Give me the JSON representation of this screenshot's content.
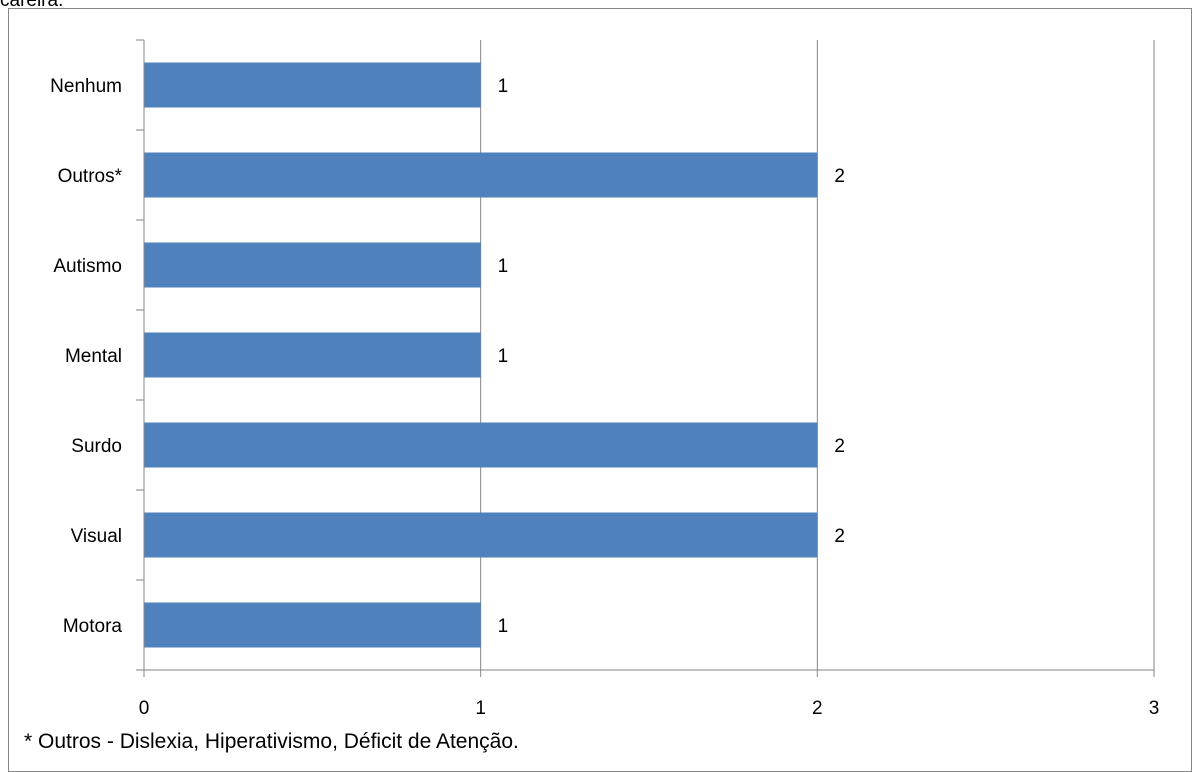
{
  "header_fragment": "carelra.",
  "footnote": "* Outros - Dislexia, Hiperativismo, Déficit de Atenção.",
  "colors": {
    "bar": "#4f81bd",
    "grid": "#868686",
    "axis": "#868686"
  },
  "chart_data": {
    "type": "bar",
    "orientation": "horizontal",
    "categories": [
      "Nenhum",
      "Outros*",
      "Autismo",
      "Mental",
      "Surdo",
      "Visual",
      "Motora"
    ],
    "values": [
      1,
      2,
      1,
      1,
      2,
      2,
      1
    ],
    "xlim": [
      0,
      3
    ],
    "xticks": [
      0,
      1,
      2,
      3
    ],
    "grid": true,
    "data_labels": true
  }
}
